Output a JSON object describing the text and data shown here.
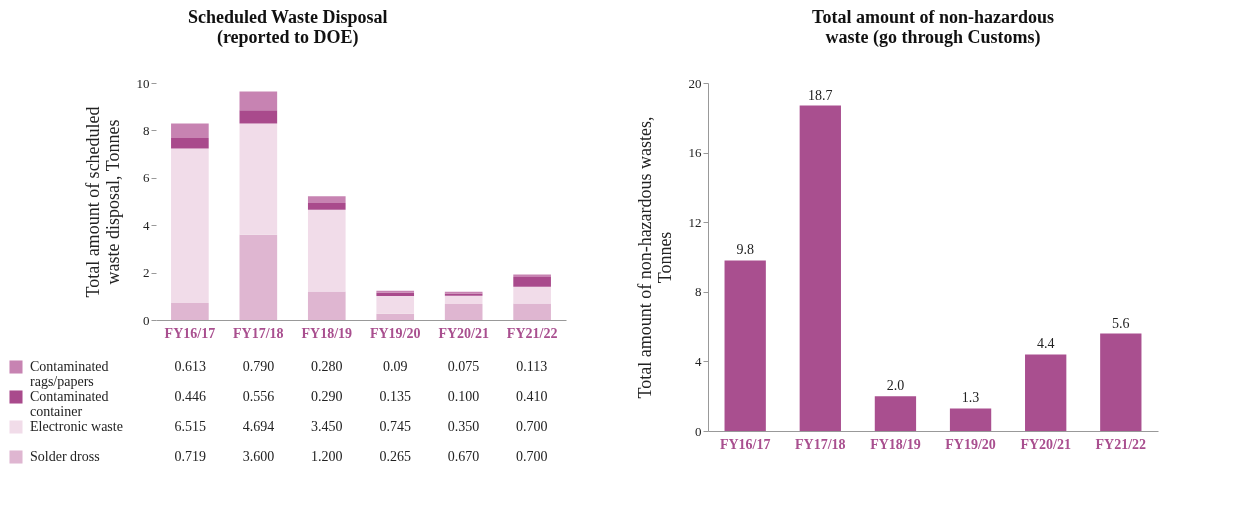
{
  "chart_data": [
    {
      "type": "bar",
      "title": "Scheduled Waste Disposal (reported to DOE)",
      "ylabel": "Total amount of scheduled waste disposal, Tonnes",
      "categories": [
        "FY16/17",
        "FY17/18",
        "FY18/19",
        "FY19/20",
        "FY20/21",
        "FY21/22"
      ],
      "stacked": true,
      "ylim": [
        0,
        10
      ],
      "yticks": [
        0,
        2,
        4,
        6,
        8,
        10
      ],
      "legend": "bottom",
      "series": [
        {
          "name": "Solder dross",
          "color": "#dfb6d1",
          "values": [
            0.719,
            3.6,
            1.2,
            0.265,
            0.67,
            0.7
          ],
          "value_labels": [
            "0.719",
            "3.600",
            "1.200",
            "0.265",
            "0.670",
            "0.700"
          ]
        },
        {
          "name": "Electronic waste",
          "color": "#f1dce9",
          "values": [
            6.515,
            4.694,
            3.45,
            0.745,
            0.35,
            0.7
          ],
          "value_labels": [
            "6.515",
            "4.694",
            "3.450",
            "0.745",
            "0.350",
            "0.700"
          ]
        },
        {
          "name": "Contaminated container",
          "color": "#a94a8c",
          "values": [
            0.446,
            0.556,
            0.29,
            0.135,
            0.1,
            0.41
          ],
          "value_labels": [
            "0.446",
            "0.556",
            "0.290",
            "0.135",
            "0.100",
            "0.410"
          ]
        },
        {
          "name": "Contaminated rags/papers",
          "color": "#c783b2",
          "values": [
            0.613,
            0.79,
            0.28,
            0.09,
            0.075,
            0.113
          ],
          "value_labels": [
            "0.613",
            "0.790",
            "0.280",
            "0.09",
            "0.075",
            "0.113"
          ]
        }
      ]
    },
    {
      "type": "bar",
      "title": "Total amount of non-hazardous waste (go through Customs)",
      "ylabel": "Total amount of non-hazardous wastes, Tonnes",
      "categories": [
        "FY16/17",
        "FY17/18",
        "FY18/19",
        "FY19/20",
        "FY20/21",
        "FY21/22"
      ],
      "ylim": [
        0,
        20
      ],
      "yticks": [
        0,
        4,
        8,
        12,
        16,
        20
      ],
      "series": [
        {
          "color": "#a94f8f",
          "values": [
            9.8,
            18.7,
            2.0,
            1.3,
            4.4,
            5.6
          ],
          "value_labels": [
            "9.8",
            "18.7",
            "2.0",
            "1.3",
            "4.4",
            "5.6"
          ]
        }
      ]
    }
  ]
}
